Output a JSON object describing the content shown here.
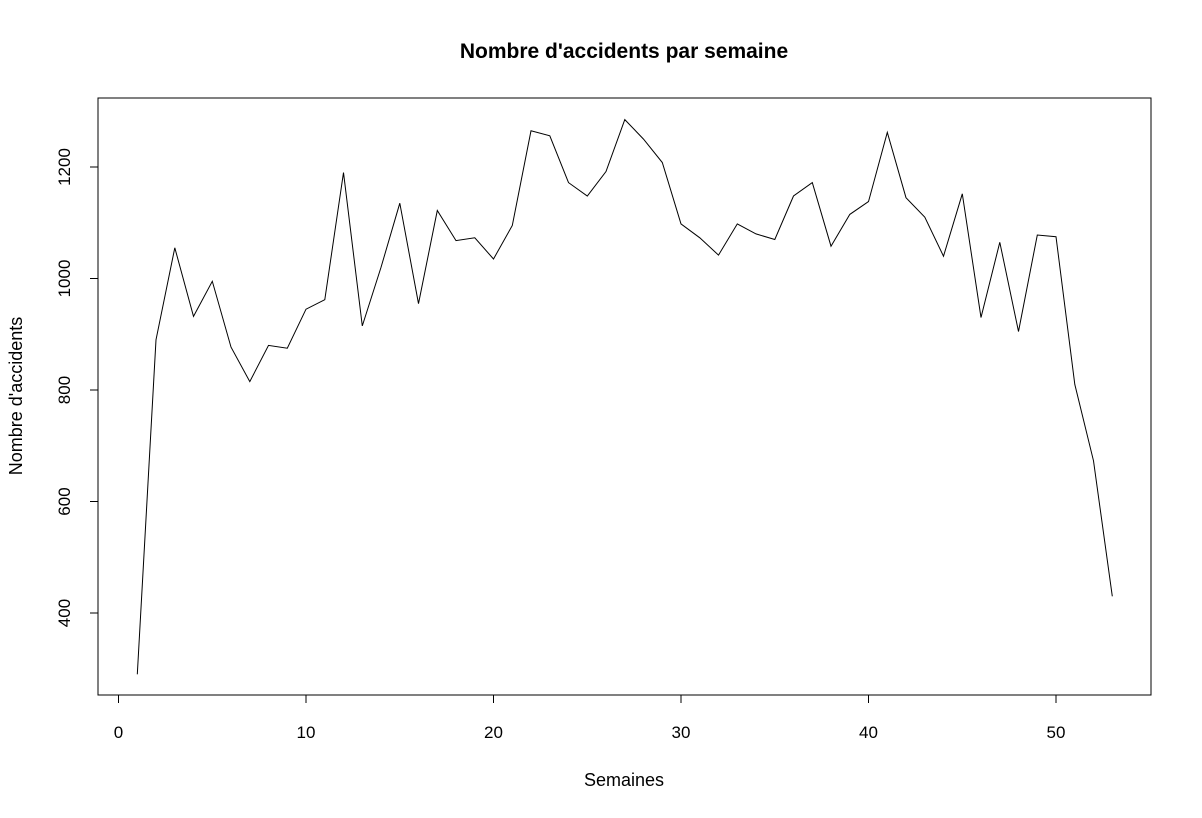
{
  "chart_data": {
    "type": "line",
    "title": "Nombre d'accidents par semaine",
    "xlabel": "Semaines",
    "ylabel": "Nombre d'accidents",
    "xlim": [
      0,
      53
    ],
    "ylim": [
      290,
      1285
    ],
    "x_ticks": [
      0,
      10,
      20,
      30,
      40,
      50
    ],
    "y_ticks": [
      400,
      600,
      800,
      1000,
      1200
    ],
    "grid": false,
    "legend": "none",
    "line_color": "#000000",
    "series": [
      {
        "x": [
          1,
          2,
          3,
          4,
          5,
          6,
          7,
          8,
          9,
          10,
          11,
          12,
          13,
          14,
          15,
          16,
          17,
          18,
          19,
          20,
          21,
          22,
          23,
          24,
          25,
          26,
          27,
          28,
          29,
          30,
          31,
          32,
          33,
          34,
          35,
          36,
          37,
          38,
          39,
          40,
          41,
          42,
          43,
          44,
          45,
          46,
          47,
          48,
          49,
          50,
          51,
          52,
          53
        ],
        "values": [
          290,
          890,
          1055,
          932,
          995,
          877,
          815,
          880,
          875,
          945,
          962,
          1190,
          915,
          1020,
          1135,
          955,
          1122,
          1068,
          1073,
          1035,
          1095,
          1265,
          1256,
          1172,
          1148,
          1192,
          1285,
          1250,
          1208,
          1098,
          1073,
          1042,
          1098,
          1080,
          1070,
          1148,
          1172,
          1058,
          1115,
          1138,
          1262,
          1145,
          1110,
          1040,
          1152,
          930,
          1065,
          905,
          1078,
          1075,
          810,
          673,
          430
        ]
      }
    ]
  }
}
